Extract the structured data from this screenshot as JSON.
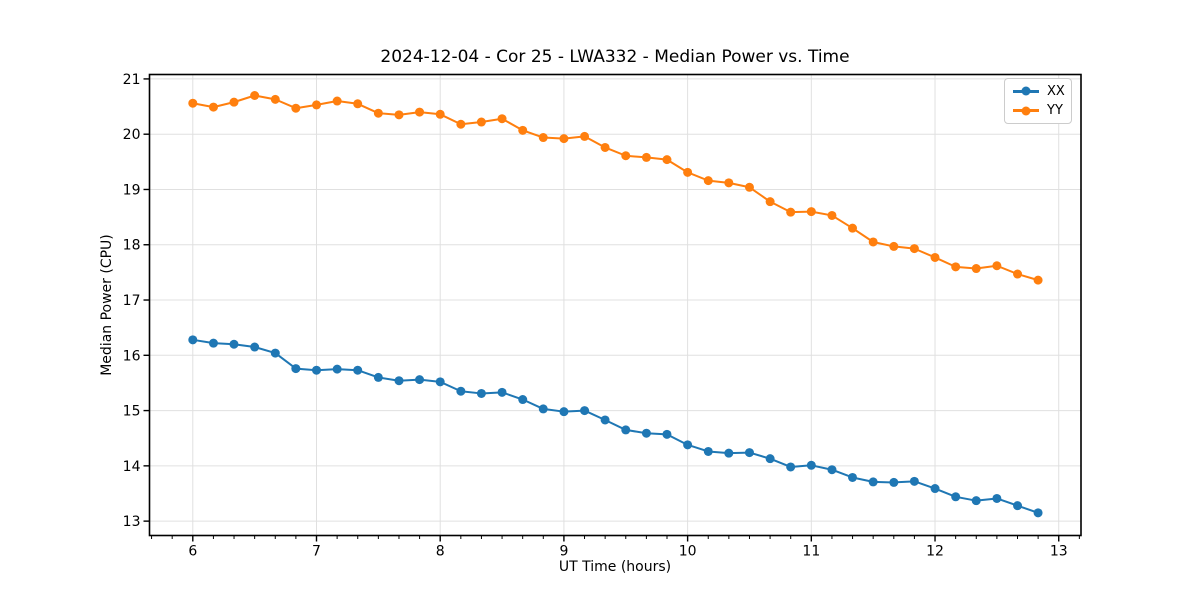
{
  "chart_data": {
    "type": "line",
    "title": "2024-12-04 - Cor 25 - LWA332 - Median Power vs. Time",
    "xlabel": "UT Time (hours)",
    "ylabel": "Median Power (CPU)",
    "xlim": [
      5.65,
      13.18
    ],
    "ylim": [
      12.74,
      21.08
    ],
    "xticks": [
      6,
      7,
      8,
      9,
      10,
      11,
      12,
      13
    ],
    "yticks": [
      13,
      14,
      15,
      16,
      17,
      18,
      19,
      20,
      21
    ],
    "x_minor_step": 0.166667,
    "grid": true,
    "legend_position": "upper right",
    "x": [
      6.0,
      6.167,
      6.333,
      6.5,
      6.667,
      6.833,
      7.0,
      7.167,
      7.333,
      7.5,
      7.667,
      7.833,
      8.0,
      8.167,
      8.333,
      8.5,
      8.667,
      8.833,
      9.0,
      9.167,
      9.333,
      9.5,
      9.667,
      9.833,
      10.0,
      10.167,
      10.333,
      10.5,
      10.667,
      10.833,
      11.0,
      11.167,
      11.333,
      11.5,
      11.667,
      11.833,
      12.0,
      12.167,
      12.333,
      12.5,
      12.667,
      12.833
    ],
    "series": [
      {
        "name": "XX",
        "color": "#1f77b4",
        "values": [
          16.28,
          16.22,
          16.2,
          16.15,
          16.04,
          15.76,
          15.73,
          15.75,
          15.73,
          15.6,
          15.54,
          15.56,
          15.52,
          15.35,
          15.31,
          15.33,
          15.2,
          15.03,
          14.98,
          15.0,
          14.83,
          14.65,
          14.59,
          14.57,
          14.38,
          14.26,
          14.23,
          14.24,
          14.13,
          13.98,
          14.01,
          13.93,
          13.79,
          13.71,
          13.7,
          13.72,
          13.59,
          13.44,
          13.37,
          13.41,
          13.28,
          13.15
        ]
      },
      {
        "name": "YY",
        "color": "#ff7f0e",
        "values": [
          20.56,
          20.49,
          20.58,
          20.7,
          20.63,
          20.47,
          20.53,
          20.6,
          20.55,
          20.38,
          20.35,
          20.4,
          20.36,
          20.18,
          20.22,
          20.28,
          20.07,
          19.94,
          19.92,
          19.96,
          19.76,
          19.61,
          19.58,
          19.54,
          19.31,
          19.16,
          19.12,
          19.04,
          18.78,
          18.59,
          18.6,
          18.53,
          18.3,
          18.05,
          17.97,
          17.93,
          17.77,
          17.6,
          17.57,
          17.62,
          17.47,
          17.36
        ]
      }
    ]
  },
  "colors": {
    "grid": "#e0e0e0",
    "spine": "#000000",
    "background": "#ffffff",
    "legend_border": "#cccccc"
  }
}
